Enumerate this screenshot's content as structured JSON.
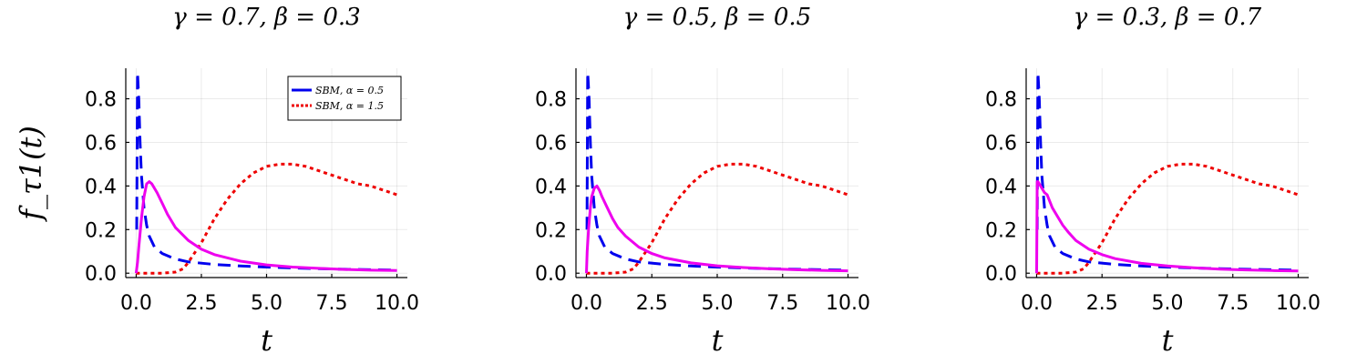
{
  "colors": {
    "blue": "#0000ee",
    "red": "#ee0000",
    "magenta": "#ee00ee"
  },
  "chart_data": [
    {
      "type": "line",
      "title": "γ = 0.7, β = 0.3",
      "xlabel": "t",
      "ylabel": "f_τ1(t)",
      "xlim": [
        -0.4,
        10.4
      ],
      "ylim": [
        -0.02,
        0.94
      ],
      "xticks": [
        "0.0",
        "2.5",
        "5.0",
        "7.5",
        "10.0"
      ],
      "yticks": [
        "0.0",
        "0.2",
        "0.4",
        "0.6",
        "0.8"
      ],
      "grid": true,
      "legend": "top-right",
      "series": [
        {
          "name": "SBM, α = 0.5",
          "style": "dashed",
          "color": "blue",
          "x": [
            0.02,
            0.05,
            0.08,
            0.1,
            0.15,
            0.2,
            0.3,
            0.4,
            0.5,
            0.7,
            1.0,
            1.5,
            2.0,
            3.0,
            4.0,
            5.0,
            6.0,
            7.0,
            8.0,
            9.0,
            10.0
          ],
          "y": [
            0.2,
            0.92,
            0.85,
            0.8,
            0.6,
            0.45,
            0.3,
            0.22,
            0.17,
            0.12,
            0.09,
            0.065,
            0.052,
            0.04,
            0.033,
            0.028,
            0.024,
            0.021,
            0.018,
            0.016,
            0.014
          ]
        },
        {
          "name": "SBM, α = 1.5",
          "style": "dotted",
          "color": "red",
          "x": [
            0,
            0.5,
            1.0,
            1.5,
            1.8,
            2.0,
            2.5,
            3.0,
            3.5,
            4.0,
            4.5,
            5.0,
            5.5,
            5.8,
            6.0,
            6.5,
            7.0,
            7.5,
            8.0,
            8.5,
            9.0,
            9.5,
            10.0
          ],
          "y": [
            0,
            0,
            0,
            0.005,
            0.02,
            0.05,
            0.14,
            0.25,
            0.34,
            0.41,
            0.46,
            0.49,
            0.5,
            0.5,
            0.5,
            0.49,
            0.47,
            0.45,
            0.43,
            0.41,
            0.4,
            0.38,
            0.36
          ]
        },
        {
          "name": "",
          "style": "solid",
          "color": "magenta",
          "x": [
            0,
            0.05,
            0.1,
            0.2,
            0.3,
            0.4,
            0.5,
            0.6,
            0.8,
            1.0,
            1.2,
            1.5,
            2.0,
            2.5,
            3.0,
            4.0,
            5.0,
            6.0,
            7.0,
            8.0,
            9.0,
            10.0
          ],
          "y": [
            0,
            0.05,
            0.12,
            0.25,
            0.35,
            0.41,
            0.42,
            0.41,
            0.37,
            0.32,
            0.27,
            0.21,
            0.15,
            0.11,
            0.085,
            0.055,
            0.038,
            0.028,
            0.022,
            0.017,
            0.014,
            0.012
          ]
        }
      ]
    },
    {
      "type": "line",
      "title": "γ = 0.5, β = 0.5",
      "xlabel": "t",
      "ylabel": "",
      "xlim": [
        -0.4,
        10.4
      ],
      "ylim": [
        -0.02,
        0.94
      ],
      "xticks": [
        "0.0",
        "2.5",
        "5.0",
        "7.5",
        "10.0"
      ],
      "yticks": [
        "0.0",
        "0.2",
        "0.4",
        "0.6",
        "0.8"
      ],
      "grid": true,
      "legend": "none",
      "series": [
        {
          "name": "",
          "style": "dashed",
          "color": "blue",
          "x": [
            0.02,
            0.05,
            0.08,
            0.1,
            0.15,
            0.2,
            0.3,
            0.4,
            0.5,
            0.7,
            1.0,
            1.5,
            2.0,
            3.0,
            4.0,
            5.0,
            6.0,
            7.0,
            8.0,
            9.0,
            10.0
          ],
          "y": [
            0.2,
            0.92,
            0.85,
            0.8,
            0.6,
            0.45,
            0.3,
            0.22,
            0.17,
            0.12,
            0.09,
            0.065,
            0.052,
            0.04,
            0.033,
            0.028,
            0.024,
            0.021,
            0.018,
            0.016,
            0.014
          ]
        },
        {
          "name": "",
          "style": "dotted",
          "color": "red",
          "x": [
            0,
            0.5,
            1.0,
            1.5,
            1.8,
            2.0,
            2.5,
            3.0,
            3.5,
            4.0,
            4.5,
            5.0,
            5.5,
            5.8,
            6.0,
            6.5,
            7.0,
            7.5,
            8.0,
            8.5,
            9.0,
            9.5,
            10.0
          ],
          "y": [
            0,
            0,
            0,
            0.005,
            0.02,
            0.05,
            0.14,
            0.25,
            0.34,
            0.41,
            0.46,
            0.49,
            0.5,
            0.5,
            0.5,
            0.49,
            0.47,
            0.45,
            0.43,
            0.41,
            0.4,
            0.38,
            0.36
          ]
        },
        {
          "name": "",
          "style": "solid",
          "color": "magenta",
          "x": [
            0,
            0.03,
            0.08,
            0.15,
            0.2,
            0.3,
            0.4,
            0.5,
            0.6,
            0.8,
            1.0,
            1.2,
            1.5,
            2.0,
            2.5,
            3.0,
            4.0,
            5.0,
            6.0,
            7.0,
            8.0,
            9.0,
            10.0
          ],
          "y": [
            0,
            0.1,
            0.2,
            0.3,
            0.35,
            0.39,
            0.4,
            0.38,
            0.35,
            0.3,
            0.25,
            0.21,
            0.17,
            0.12,
            0.09,
            0.07,
            0.047,
            0.034,
            0.026,
            0.02,
            0.016,
            0.013,
            0.011
          ]
        }
      ]
    },
    {
      "type": "line",
      "title": "γ = 0.3, β = 0.7",
      "xlabel": "t",
      "ylabel": "",
      "xlim": [
        -0.4,
        10.4
      ],
      "ylim": [
        -0.02,
        0.94
      ],
      "xticks": [
        "0.0",
        "2.5",
        "5.0",
        "7.5",
        "10.0"
      ],
      "yticks": [
        "0.0",
        "0.2",
        "0.4",
        "0.6",
        "0.8"
      ],
      "grid": true,
      "legend": "none",
      "series": [
        {
          "name": "",
          "style": "dashed",
          "color": "blue",
          "x": [
            0.02,
            0.05,
            0.08,
            0.1,
            0.15,
            0.2,
            0.3,
            0.4,
            0.5,
            0.7,
            1.0,
            1.5,
            2.0,
            3.0,
            4.0,
            5.0,
            6.0,
            7.0,
            8.0,
            9.0,
            10.0
          ],
          "y": [
            0.2,
            0.92,
            0.85,
            0.8,
            0.6,
            0.45,
            0.3,
            0.22,
            0.17,
            0.12,
            0.09,
            0.065,
            0.052,
            0.04,
            0.033,
            0.028,
            0.024,
            0.021,
            0.018,
            0.016,
            0.014
          ]
        },
        {
          "name": "",
          "style": "dotted",
          "color": "red",
          "x": [
            0,
            0.5,
            1.0,
            1.5,
            1.8,
            2.0,
            2.5,
            3.0,
            3.5,
            4.0,
            4.5,
            5.0,
            5.5,
            5.8,
            6.0,
            6.5,
            7.0,
            7.5,
            8.0,
            8.5,
            9.0,
            9.5,
            10.0
          ],
          "y": [
            0,
            0,
            0,
            0.005,
            0.02,
            0.05,
            0.14,
            0.25,
            0.34,
            0.41,
            0.46,
            0.49,
            0.5,
            0.5,
            0.5,
            0.49,
            0.47,
            0.45,
            0.43,
            0.41,
            0.4,
            0.38,
            0.36
          ]
        },
        {
          "name": "",
          "style": "solid",
          "color": "magenta",
          "x": [
            0,
            0.02,
            0.05,
            0.1,
            0.2,
            0.3,
            0.4,
            0.5,
            0.6,
            0.8,
            1.0,
            1.2,
            1.5,
            2.0,
            2.5,
            3.0,
            4.0,
            5.0,
            6.0,
            7.0,
            8.0,
            9.0,
            10.0
          ],
          "y": [
            0,
            0.42,
            0.42,
            0.41,
            0.39,
            0.37,
            0.36,
            0.33,
            0.3,
            0.26,
            0.22,
            0.19,
            0.15,
            0.11,
            0.085,
            0.067,
            0.045,
            0.033,
            0.025,
            0.019,
            0.015,
            0.012,
            0.01
          ]
        }
      ]
    }
  ]
}
